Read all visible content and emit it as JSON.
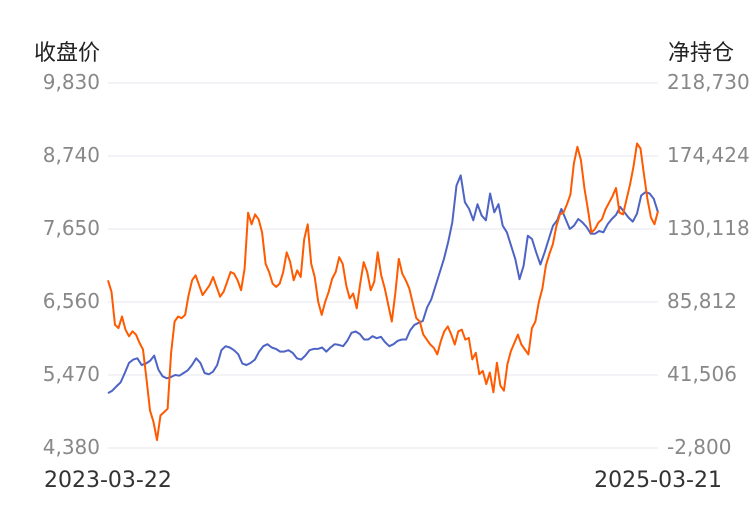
{
  "chart_data": {
    "type": "line",
    "y_left_label": "收盘价",
    "y_right_label": "净持仓",
    "x_start": "2023-03-22",
    "x_end": "2025-03-21",
    "left_ticks": [
      "9,830",
      "8,740",
      "7,650",
      "6,560",
      "5,470",
      "4,380"
    ],
    "right_ticks": [
      "218,730",
      "174,424",
      "130,118",
      "85,812",
      "41,506",
      "-2,800"
    ],
    "left_range": [
      4380,
      9830
    ],
    "right_range": [
      -2800,
      218730
    ],
    "grid": true,
    "colors": {
      "price": "#4e64c4",
      "position": "#ff5a00",
      "grid": "#e4e6ef",
      "tick": "#888888"
    },
    "series": [
      {
        "key": "price",
        "axis": "left",
        "values": [
          5200,
          5235,
          5300,
          5360,
          5500,
          5650,
          5700,
          5720,
          5620,
          5640,
          5680,
          5760,
          5550,
          5450,
          5420,
          5440,
          5470,
          5460,
          5500,
          5540,
          5620,
          5720,
          5650,
          5500,
          5480,
          5520,
          5620,
          5840,
          5900,
          5880,
          5840,
          5780,
          5640,
          5620,
          5650,
          5700,
          5820,
          5900,
          5930,
          5880,
          5860,
          5820,
          5820,
          5840,
          5800,
          5720,
          5700,
          5760,
          5840,
          5860,
          5860,
          5880,
          5820,
          5880,
          5930,
          5920,
          5900,
          5980,
          6100,
          6120,
          6080,
          6000,
          6000,
          6050,
          6020,
          6040,
          5960,
          5900,
          5930,
          5980,
          6000,
          6000,
          6140,
          6220,
          6250,
          6280,
          6480,
          6600,
          6800,
          7000,
          7200,
          7450,
          7750,
          8300,
          8450,
          8050,
          7950,
          7780,
          8020,
          7850,
          7780,
          8180,
          7900,
          8020,
          7700,
          7600,
          7400,
          7200,
          6900,
          7100,
          7550,
          7500,
          7300,
          7120,
          7300,
          7500,
          7700,
          7780,
          7950,
          7800,
          7650,
          7700,
          7800,
          7750,
          7680,
          7580,
          7580,
          7620,
          7600,
          7720,
          7800,
          7860,
          7980,
          7900,
          7820,
          7760,
          7880,
          8150,
          8200,
          8180,
          8100,
          7900
        ]
      },
      {
        "key": "position",
        "axis": "right",
        "values": [
          99000,
          92000,
          72000,
          70000,
          77000,
          69000,
          65000,
          68000,
          66000,
          61000,
          57000,
          39000,
          20000,
          13000,
          2000,
          17000,
          19000,
          21000,
          55000,
          74000,
          77000,
          76000,
          78000,
          90000,
          99000,
          102000,
          96000,
          90000,
          93000,
          96000,
          101000,
          95000,
          89000,
          92000,
          98000,
          104000,
          103000,
          99000,
          93000,
          106000,
          140000,
          133000,
          139000,
          136000,
          128000,
          109000,
          104000,
          97000,
          95000,
          97000,
          104000,
          116000,
          110000,
          99000,
          105000,
          101000,
          124000,
          133000,
          109000,
          101000,
          86000,
          78000,
          86000,
          92000,
          100000,
          104000,
          113000,
          109000,
          96000,
          88000,
          91000,
          82000,
          97000,
          110000,
          104000,
          93000,
          98000,
          116000,
          102000,
          94000,
          84000,
          74000,
          91000,
          112000,
          103000,
          99000,
          94000,
          85000,
          76000,
          74000,
          66000,
          63000,
          60000,
          58000,
          54000,
          62000,
          68000,
          71000,
          66000,
          60000,
          68000,
          69000,
          63000,
          64000,
          51000,
          55000,
          42000,
          44000,
          36000,
          43000,
          31000,
          49000,
          35000,
          32000,
          48000,
          56000,
          61000,
          66000,
          60000,
          57000,
          54000,
          70000,
          74000,
          86000,
          94000,
          108000,
          115000,
          121000,
          132000,
          139000,
          140000,
          145000,
          151000,
          170000,
          180000,
          172000,
          155000,
          142000,
          128000,
          130000,
          134000,
          136000,
          142000,
          146000,
          150000,
          155000,
          140000,
          139000,
          148000,
          157000,
          168000,
          182000,
          179000,
          163000,
          148000,
          137000,
          133000,
          141000
        ]
      }
    ]
  }
}
